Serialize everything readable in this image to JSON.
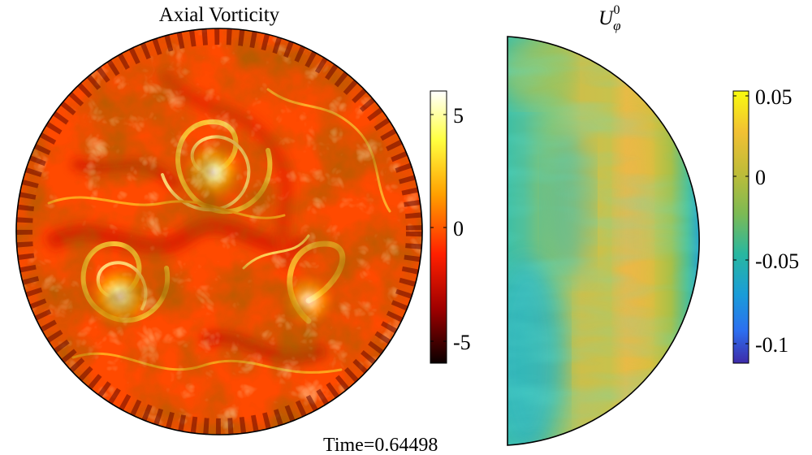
{
  "figure": {
    "left_panel": {
      "title": "Axial Vorticity",
      "colorbar": {
        "colormap": "hot",
        "ticks": [
          "5",
          "0",
          "-5"
        ],
        "range": [
          -6,
          6
        ]
      }
    },
    "right_panel": {
      "title_main": "U",
      "title_sub": "φ",
      "title_sup": "0",
      "colorbar": {
        "colormap": "parula",
        "ticks": [
          "0.05",
          "0",
          "-0.05",
          "-0.1"
        ],
        "range": [
          -0.115,
          0.055
        ]
      }
    },
    "time_label": "Time=0.64498"
  }
}
